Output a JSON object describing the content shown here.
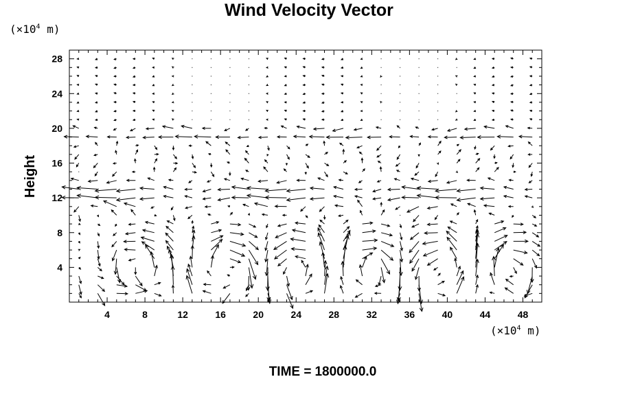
{
  "chart_data": {
    "type": "quiver",
    "title": "Wind Velocity Vector",
    "ylabel": "Height",
    "xlabel": "",
    "x_unit": "(×10",
    "x_unit_exp": "4",
    "x_unit_tail": " m)",
    "y_unit": "(×10",
    "y_unit_exp": "4",
    "y_unit_tail": " m)",
    "xlim": [
      0,
      50
    ],
    "ylim": [
      0,
      29
    ],
    "x_ticks": [
      4,
      8,
      12,
      16,
      20,
      24,
      28,
      32,
      36,
      40,
      44,
      48
    ],
    "y_ticks": [
      4,
      8,
      12,
      16,
      20,
      24,
      28
    ],
    "grid_spacing": [
      2,
      1
    ],
    "field_description": "Arrow field of wind velocity; alternating counter-rotating cells below height 9, easterly (leftward) jets near heights 12-13 and 19-20, near-calm above height 22.",
    "color": "#000000"
  },
  "footer": {
    "label": "TIME =",
    "value": "1800000.0"
  }
}
